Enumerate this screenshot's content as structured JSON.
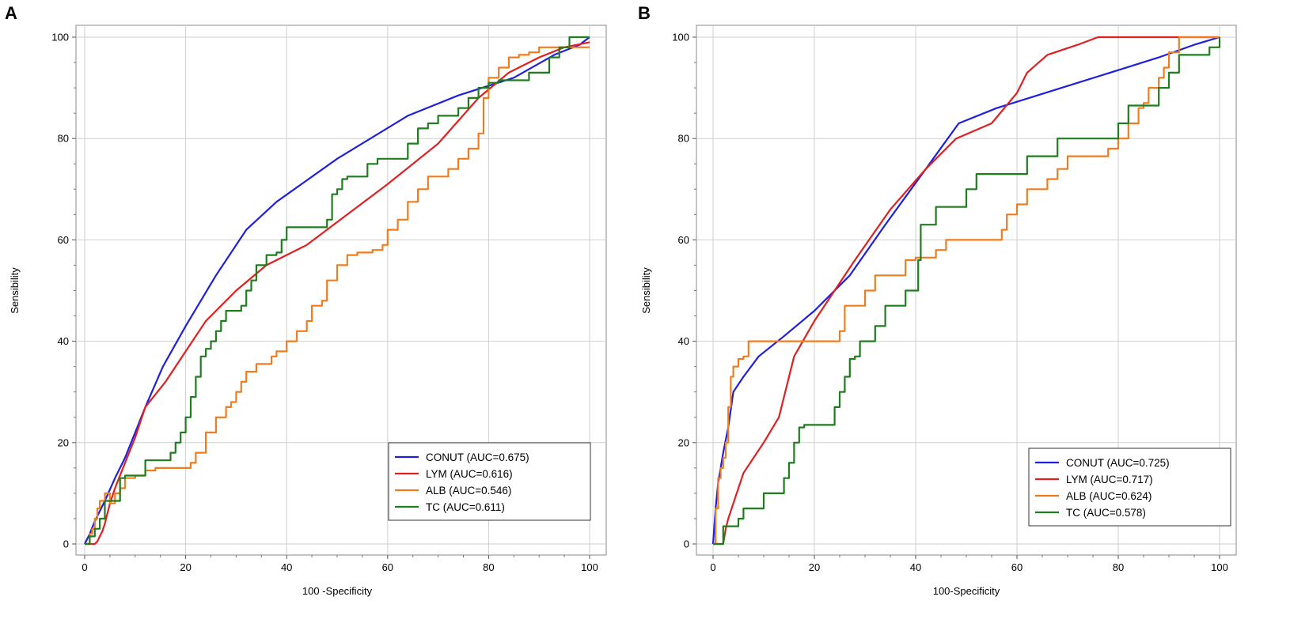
{
  "figure": {
    "panels": [
      "A",
      "B"
    ]
  },
  "chart_data": [
    {
      "panel": "A",
      "type": "line",
      "xlabel": "100 -Specificity",
      "ylabel": "Sensibility",
      "xlim": [
        0,
        100
      ],
      "ylim": [
        0,
        100
      ],
      "xticks": [
        0,
        20,
        40,
        60,
        80,
        100
      ],
      "yticks": [
        0,
        20,
        40,
        60,
        80,
        100
      ],
      "grid": true,
      "legend_position": "bottom-right",
      "series": [
        {
          "name": "CONUT (AUC=0.675)",
          "color": "#1f1fe0",
          "step": false,
          "x": [
            0,
            1,
            2,
            4,
            6,
            8,
            10,
            12,
            15.5,
            20,
            26,
            32,
            38,
            50,
            64,
            74,
            85,
            93,
            98,
            100
          ],
          "y": [
            0,
            2,
            4.5,
            8.5,
            13,
            17,
            22,
            27,
            35,
            43,
            53,
            62,
            67.5,
            76,
            84.5,
            88.5,
            92,
            96.5,
            98.5,
            100
          ]
        },
        {
          "name": "LYM (AUC=0.616)",
          "color": "#e02020",
          "step": false,
          "x": [
            0,
            2,
            2.5,
            3,
            3.5,
            4,
            5,
            6,
            8,
            10,
            12,
            16,
            20,
            24,
            30,
            36,
            44,
            52,
            60,
            70,
            78,
            84,
            90,
            95,
            100
          ],
          "y": [
            0,
            0,
            0.5,
            1.5,
            2.5,
            4,
            8,
            11,
            16,
            21,
            27,
            32,
            38,
            44,
            50,
            55,
            59,
            65,
            71,
            79,
            88,
            93,
            96,
            98,
            99
          ]
        },
        {
          "name": "ALB (AUC=0.546)",
          "color": "#f07c20",
          "step": true,
          "x": [
            0,
            1,
            1.5,
            2,
            2.5,
            3,
            4,
            5,
            6,
            7,
            8,
            10,
            12,
            14,
            16,
            18,
            20,
            21,
            22,
            24,
            26,
            28,
            29,
            30,
            31,
            32,
            34,
            36,
            37,
            38,
            40,
            42,
            44,
            45,
            46,
            47,
            48,
            50,
            52,
            54,
            56,
            57,
            58,
            59,
            60,
            62,
            64,
            66,
            68,
            70,
            72,
            74,
            76,
            78,
            79,
            80,
            82,
            84,
            86,
            88,
            90,
            92,
            94,
            96,
            98,
            100
          ],
          "y": [
            0,
            2,
            3,
            5,
            7,
            8.5,
            10,
            8,
            10,
            11,
            13,
            13.5,
            14.5,
            15,
            15,
            15,
            15,
            16,
            18,
            22,
            25,
            27,
            28,
            30,
            32,
            34,
            35.5,
            35.5,
            37,
            38,
            40,
            42,
            44,
            47,
            47,
            48,
            52,
            55,
            57,
            57.5,
            57.5,
            58,
            58,
            59,
            62,
            64,
            67.5,
            70,
            72.5,
            72.5,
            74,
            76,
            78,
            81,
            88,
            92,
            94,
            96,
            96.5,
            97,
            98,
            98,
            98,
            98,
            98,
            98
          ]
        },
        {
          "name": "TC (AUC=0.611)",
          "color": "#1e7d1e",
          "step": true,
          "x": [
            0,
            1,
            2,
            3,
            4,
            5,
            6,
            7,
            8,
            10,
            12,
            14,
            16,
            17,
            18,
            19,
            20,
            21,
            22,
            23,
            24,
            25,
            26,
            27,
            28,
            29,
            30,
            31,
            32,
            33,
            34,
            36,
            38,
            39,
            40,
            42,
            44,
            46,
            48,
            49,
            50,
            51,
            52,
            54,
            56,
            58,
            60,
            62,
            64,
            66,
            68,
            70,
            72,
            74,
            76,
            78,
            80,
            82,
            84,
            86,
            88,
            90,
            92,
            94,
            96,
            98,
            100
          ],
          "y": [
            0,
            1.5,
            3,
            5,
            8.5,
            8.5,
            8.5,
            13,
            13.5,
            13.5,
            16.5,
            16.5,
            16.5,
            18,
            20,
            22,
            25,
            29,
            33,
            37,
            38.5,
            40,
            42,
            44,
            46,
            46,
            46,
            47,
            50,
            52,
            55,
            57,
            57.5,
            60,
            62.5,
            62.5,
            62.5,
            62.5,
            64,
            69,
            70,
            72,
            72.5,
            72.5,
            75,
            76,
            76,
            76,
            79,
            82,
            83,
            84.5,
            84.5,
            86,
            88,
            90,
            91,
            91.5,
            91.5,
            91.5,
            93,
            93,
            96,
            98,
            100,
            100,
            100
          ]
        }
      ],
      "legend": [
        "CONUT (AUC=0.675)",
        "LYM (AUC=0.616)",
        "ALB (AUC=0.546)",
        "TC (AUC=0.611)"
      ]
    },
    {
      "panel": "B",
      "type": "line",
      "xlabel": "100-Specificity",
      "ylabel": "Sensibility",
      "xlim": [
        0,
        100
      ],
      "ylim": [
        0,
        100
      ],
      "xticks": [
        0,
        20,
        40,
        60,
        80,
        100
      ],
      "yticks": [
        0,
        20,
        40,
        60,
        80,
        100
      ],
      "grid": true,
      "legend_position": "bottom-right",
      "series": [
        {
          "name": "CONUT (AUC=0.725)",
          "color": "#1f1fe0",
          "step": false,
          "x": [
            0,
            0.5,
            1,
            2,
            3,
            4,
            6,
            9,
            14,
            20,
            27,
            34,
            42,
            48.5,
            56,
            64,
            72,
            80,
            88,
            95,
            100
          ],
          "y": [
            0,
            7,
            12,
            18,
            23,
            30,
            33,
            37,
            41,
            46,
            53,
            63,
            74,
            83,
            86,
            88.5,
            91,
            93.5,
            96,
            98.5,
            100
          ]
        },
        {
          "name": "LYM (AUC=0.717)",
          "color": "#e02020",
          "step": false,
          "x": [
            0,
            2,
            2.5,
            3,
            4,
            6,
            8,
            10,
            13,
            16,
            20,
            24,
            28,
            35,
            42,
            48,
            55,
            60,
            62,
            66,
            72,
            76,
            80,
            90,
            100
          ],
          "y": [
            0,
            0,
            3,
            5,
            8,
            14,
            17,
            20,
            25,
            37,
            44,
            50,
            56,
            66,
            74,
            80,
            83,
            89,
            93,
            96.5,
            98.5,
            100,
            100,
            100,
            100
          ]
        },
        {
          "name": "ALB (AUC=0.624)",
          "color": "#f07c20",
          "step": true,
          "x": [
            0,
            0.5,
            1,
            1.5,
            2,
            2.5,
            3,
            3.5,
            4,
            5,
            6,
            7,
            8,
            10,
            12,
            16,
            20,
            24,
            25,
            26,
            28,
            30,
            32,
            34,
            36,
            38,
            40,
            42,
            44,
            46,
            48,
            50,
            52,
            54,
            56,
            57,
            58,
            60,
            62,
            64,
            66,
            68,
            70,
            72,
            74,
            76,
            78,
            80,
            82,
            84,
            85,
            86,
            88,
            89,
            90,
            92,
            94,
            100
          ],
          "y": [
            0,
            7,
            13,
            15,
            17,
            20,
            27,
            33,
            35,
            36.5,
            37,
            40,
            40,
            40,
            40,
            40,
            40,
            40,
            42,
            47,
            47,
            50,
            53,
            53,
            53,
            56,
            56.5,
            56.5,
            58,
            60,
            60,
            60,
            60,
            60,
            60,
            62,
            65,
            67,
            70,
            70,
            72,
            74,
            76.5,
            76.5,
            76.5,
            76.5,
            78,
            80,
            83,
            86,
            87,
            90,
            92,
            94,
            97,
            100,
            100,
            100
          ]
        },
        {
          "name": "TC (AUC=0.578)",
          "color": "#1e7d1e",
          "step": true,
          "x": [
            0,
            1,
            2,
            3,
            4,
            5,
            6,
            8,
            10,
            12,
            14,
            15,
            16,
            17,
            18,
            20,
            22,
            24,
            25,
            26,
            27,
            28,
            29,
            30,
            32,
            34,
            36,
            38,
            40,
            40.5,
            41,
            42,
            44,
            46,
            48,
            50,
            52,
            54,
            56,
            58,
            60,
            62,
            64,
            66,
            68,
            70,
            72,
            74,
            76,
            78,
            80,
            82,
            84,
            86,
            88,
            90,
            92,
            94,
            96,
            98,
            100
          ],
          "y": [
            0,
            0,
            3.5,
            3.5,
            3.5,
            5,
            7,
            7,
            10,
            10,
            13,
            16,
            20,
            23,
            23.5,
            23.5,
            23.5,
            27,
            30,
            33,
            36.5,
            37,
            40,
            40,
            43,
            47,
            47,
            50,
            50,
            56,
            63,
            63,
            66.5,
            66.5,
            66.5,
            70,
            73,
            73,
            73,
            73,
            73,
            76.5,
            76.5,
            76.5,
            80,
            80,
            80,
            80,
            80,
            80,
            83,
            86.5,
            86.5,
            86.5,
            90,
            93,
            96.5,
            96.5,
            96.5,
            98,
            100
          ]
        }
      ],
      "legend": [
        "CONUT (AUC=0.725)",
        "LYM (AUC=0.717)",
        "ALB (AUC=0.624)",
        "TC (AUC=0.578)"
      ]
    }
  ]
}
